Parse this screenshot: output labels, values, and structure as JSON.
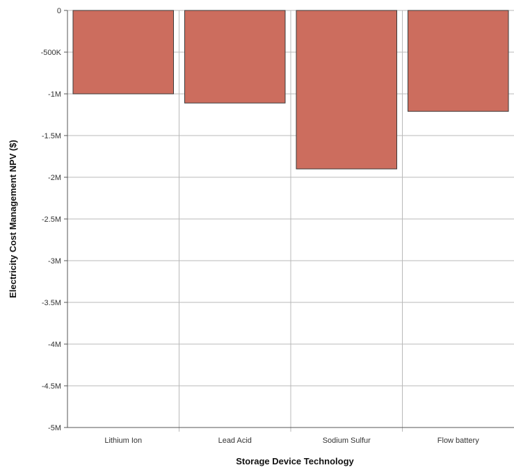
{
  "chart_data": {
    "type": "bar",
    "title": "",
    "xlabel": "Storage Device Technology",
    "ylabel": "Electricity Cost Management NPV ($)",
    "categories": [
      "Lithium Ion",
      "Lead Acid",
      "Sodium Sulfur",
      "Flow battery"
    ],
    "values": [
      -1000000,
      -1110000,
      -1900000,
      -1210000
    ],
    "ylim": [
      -5000000,
      0
    ],
    "yticks": [
      {
        "value": 0,
        "label": "0"
      },
      {
        "value": -500000,
        "label": "-500K"
      },
      {
        "value": -1000000,
        "label": "-1M"
      },
      {
        "value": -1500000,
        "label": "-1.5M"
      },
      {
        "value": -2000000,
        "label": "-2M"
      },
      {
        "value": -2500000,
        "label": "-2.5M"
      },
      {
        "value": -3000000,
        "label": "-3M"
      },
      {
        "value": -3500000,
        "label": "-3.5M"
      },
      {
        "value": -4000000,
        "label": "-4M"
      },
      {
        "value": -4500000,
        "label": "-4.5M"
      },
      {
        "value": -5000000,
        "label": "-5M"
      }
    ],
    "grid": true,
    "legend": "none",
    "colors": {
      "bar_fill": "#cc6d5e",
      "bar_stroke": "#3a3a3a",
      "grid": "#b9b9b9",
      "axis": "#555555"
    }
  }
}
